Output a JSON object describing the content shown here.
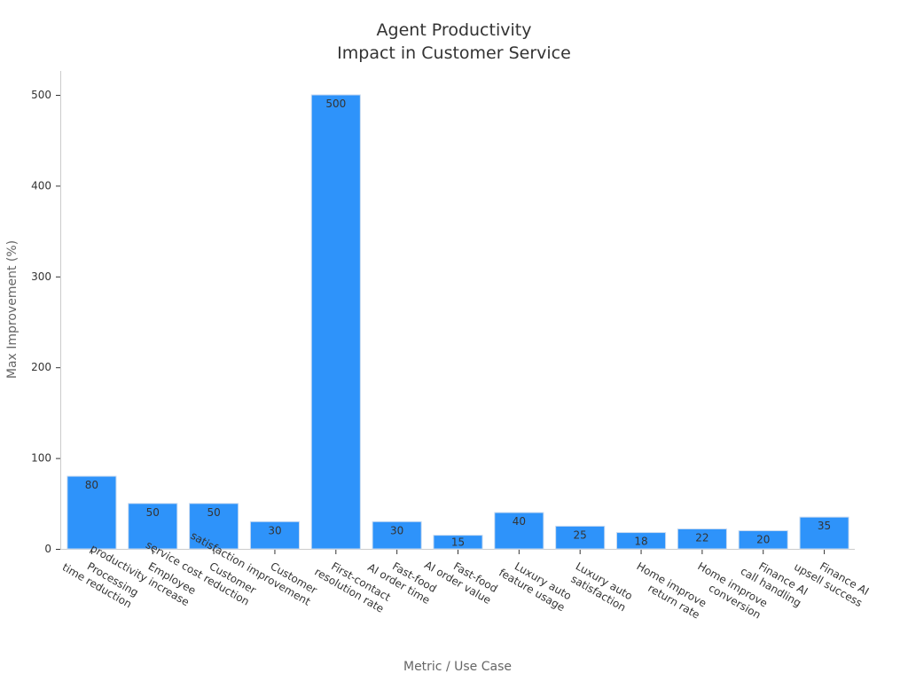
{
  "chart_data": {
    "type": "bar",
    "title": [
      "Agent Productivity",
      "Impact in Customer Service"
    ],
    "xlabel": "Metric / Use Case",
    "ylabel": "Max Improvement (%)",
    "ylim": [
      0,
      525
    ],
    "yticks": [
      0,
      100,
      200,
      300,
      400,
      500
    ],
    "grid": false,
    "bar_color": "#2e93fa",
    "categories": [
      [
        "Processing",
        "time reduction"
      ],
      [
        "Employee",
        "productivity increase"
      ],
      [
        "Customer",
        "service cost reduction"
      ],
      [
        "Customer",
        "satisfaction improvement"
      ],
      [
        "First-contact",
        "resolution rate"
      ],
      [
        "Fast-food",
        "AI order time"
      ],
      [
        "Fast-food",
        "AI order value"
      ],
      [
        "Luxury auto",
        "feature usage"
      ],
      [
        "Luxury auto",
        "satisfaction"
      ],
      [
        "Home improve",
        "return rate"
      ],
      [
        "Home improve",
        "conversion"
      ],
      [
        "Finance AI",
        "call handling"
      ],
      [
        "Finance AI",
        "upsell success"
      ]
    ],
    "values": [
      80,
      50,
      50,
      30,
      500,
      30,
      15,
      40,
      25,
      18,
      22,
      20,
      35
    ]
  }
}
